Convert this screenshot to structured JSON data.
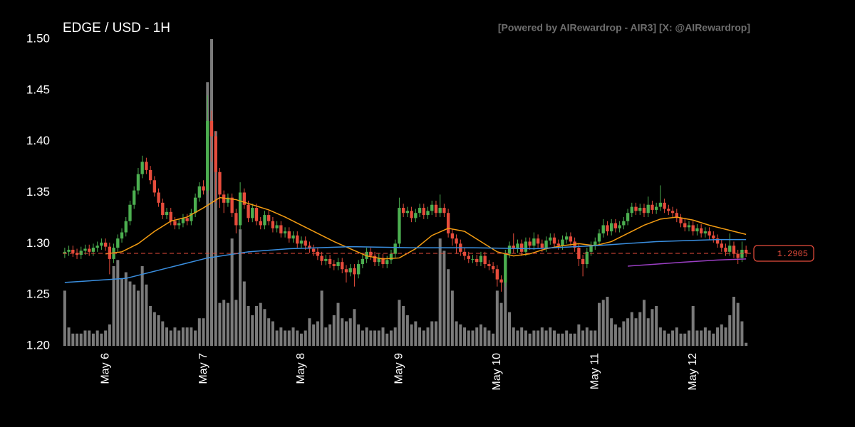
{
  "chart_data": {
    "type": "candlestick",
    "title": "EDGE / USD - 1H",
    "watermark": "[Powered by AIRewardrop - AIR3] [X: @AIRewardrop]",
    "up_color": "#4caf50",
    "down_color": "#e74c3c",
    "volume_color": "#7a7a7a",
    "ylim": [
      1.2,
      1.5
    ],
    "yticks": [
      {
        "value": 1.2,
        "label": "1.20"
      },
      1.25,
      {
        "value": 1.3,
        "label": "1.30"
      },
      1.35,
      {
        "value": 1.4,
        "label": "1.40"
      },
      1.45,
      {
        "value": 1.5,
        "label": "1.50"
      }
    ],
    "xlim": [
      -0.5,
      167.5
    ],
    "xticks": [
      {
        "value": 10,
        "label": "May 6"
      },
      {
        "value": 34,
        "label": "May 7"
      },
      {
        "value": 58,
        "label": "May 8"
      },
      {
        "value": 82,
        "label": "May 9"
      },
      {
        "value": 106,
        "label": "May 10"
      },
      {
        "value": 130,
        "label": "May 11"
      },
      {
        "value": 154,
        "label": "May 12"
      }
    ],
    "open": [
      1.29,
      1.292,
      1.294,
      1.291,
      1.289,
      1.293,
      1.295,
      1.292,
      1.296,
      1.298,
      1.301,
      1.297,
      1.285,
      1.296,
      1.305,
      1.311,
      1.322,
      1.338,
      1.352,
      1.368,
      1.38,
      1.372,
      1.362,
      1.35,
      1.34,
      1.328,
      1.331,
      1.322,
      1.318,
      1.32,
      1.325,
      1.322,
      1.33,
      1.345,
      1.356,
      1.352,
      1.42,
      1.405,
      1.37,
      1.348,
      1.34,
      1.345,
      1.33,
      1.318,
      1.35,
      1.338,
      1.325,
      1.335,
      1.322,
      1.318,
      1.328,
      1.322,
      1.315,
      1.318,
      1.31,
      1.312,
      1.305,
      1.308,
      1.3,
      1.303,
      1.298,
      1.295,
      1.292,
      1.288,
      1.283,
      1.285,
      1.28,
      1.278,
      1.282,
      1.275,
      1.272,
      1.276,
      1.27,
      1.28,
      1.285,
      1.292,
      1.288,
      1.282,
      1.286,
      1.28,
      1.284,
      1.29,
      1.3,
      1.335,
      1.33,
      1.332,
      1.325,
      1.33,
      1.335,
      1.328,
      1.332,
      1.338,
      1.33,
      1.335,
      1.33,
      1.31,
      1.305,
      1.3,
      1.292,
      1.288,
      1.285,
      1.285,
      1.282,
      1.288,
      1.28,
      1.278,
      1.275,
      1.265,
      1.262,
      1.29,
      1.298,
      1.295,
      1.3,
      1.292,
      1.302,
      1.298,
      1.305,
      1.3,
      1.296,
      1.303,
      1.306,
      1.3,
      1.298,
      1.304,
      1.307,
      1.302,
      1.296,
      1.285,
      1.28,
      1.292,
      1.298,
      1.302,
      1.31,
      1.318,
      1.312,
      1.32,
      1.315,
      1.318,
      1.322,
      1.33,
      1.336,
      1.332,
      1.335,
      1.33,
      1.338,
      1.333,
      1.336,
      1.34,
      1.334,
      1.332,
      1.33,
      1.325,
      1.32,
      1.316,
      1.318,
      1.312,
      1.315,
      1.31,
      1.312,
      1.308,
      1.305,
      1.3,
      1.296,
      1.292,
      1.298,
      1.29,
      1.286,
      1.294
    ],
    "high": [
      1.296,
      1.298,
      1.298,
      1.295,
      1.297,
      1.299,
      1.299,
      1.3,
      1.302,
      1.305,
      1.305,
      1.301,
      1.3,
      1.309,
      1.315,
      1.326,
      1.342,
      1.356,
      1.374,
      1.386,
      1.384,
      1.376,
      1.366,
      1.354,
      1.344,
      1.335,
      1.335,
      1.326,
      1.324,
      1.329,
      1.329,
      1.334,
      1.349,
      1.36,
      1.362,
      1.445,
      1.43,
      1.41,
      1.374,
      1.352,
      1.349,
      1.349,
      1.334,
      1.36,
      1.354,
      1.342,
      1.339,
      1.339,
      1.326,
      1.332,
      1.332,
      1.326,
      1.322,
      1.322,
      1.316,
      1.316,
      1.312,
      1.312,
      1.307,
      1.307,
      1.302,
      1.299,
      1.296,
      1.292,
      1.289,
      1.289,
      1.284,
      1.286,
      1.286,
      1.279,
      1.28,
      1.28,
      1.284,
      1.289,
      1.296,
      1.296,
      1.292,
      1.29,
      1.29,
      1.288,
      1.294,
      1.304,
      1.345,
      1.339,
      1.336,
      1.336,
      1.334,
      1.339,
      1.339,
      1.336,
      1.342,
      1.342,
      1.348,
      1.339,
      1.334,
      1.314,
      1.309,
      1.304,
      1.296,
      1.292,
      1.289,
      1.289,
      1.292,
      1.292,
      1.284,
      1.282,
      1.279,
      1.269,
      1.294,
      1.302,
      1.31,
      1.304,
      1.304,
      1.306,
      1.306,
      1.311,
      1.309,
      1.304,
      1.307,
      1.31,
      1.31,
      1.304,
      1.308,
      1.311,
      1.311,
      1.306,
      1.3,
      1.289,
      1.296,
      1.302,
      1.306,
      1.314,
      1.324,
      1.322,
      1.324,
      1.324,
      1.322,
      1.326,
      1.334,
      1.34,
      1.34,
      1.339,
      1.339,
      1.346,
      1.342,
      1.34,
      1.357,
      1.344,
      1.338,
      1.336,
      1.334,
      1.329,
      1.324,
      1.322,
      1.322,
      1.319,
      1.319,
      1.316,
      1.316,
      1.312,
      1.309,
      1.304,
      1.3,
      1.31,
      1.302,
      1.294,
      1.302,
      1.298
    ],
    "low": [
      1.286,
      1.288,
      1.287,
      1.285,
      1.285,
      1.289,
      1.288,
      1.288,
      1.292,
      1.294,
      1.293,
      1.27,
      1.281,
      1.292,
      1.301,
      1.307,
      1.318,
      1.334,
      1.348,
      1.364,
      1.368,
      1.358,
      1.346,
      1.336,
      1.324,
      1.324,
      1.318,
      1.314,
      1.314,
      1.316,
      1.318,
      1.318,
      1.326,
      1.341,
      1.348,
      1.348,
      1.38,
      1.34,
      1.335,
      1.33,
      1.336,
      1.326,
      1.31,
      1.314,
      1.334,
      1.321,
      1.321,
      1.318,
      1.314,
      1.314,
      1.318,
      1.311,
      1.311,
      1.306,
      1.306,
      1.301,
      1.301,
      1.296,
      1.296,
      1.294,
      1.291,
      1.288,
      1.284,
      1.279,
      1.279,
      1.276,
      1.274,
      1.274,
      1.271,
      1.262,
      1.268,
      1.258,
      1.266,
      1.276,
      1.281,
      1.284,
      1.278,
      1.278,
      1.276,
      1.276,
      1.28,
      1.286,
      1.296,
      1.326,
      1.326,
      1.321,
      1.321,
      1.326,
      1.324,
      1.324,
      1.328,
      1.326,
      1.326,
      1.326,
      1.306,
      1.298,
      1.29,
      1.288,
      1.284,
      1.281,
      1.281,
      1.278,
      1.278,
      1.276,
      1.274,
      1.271,
      1.258,
      1.253,
      1.258,
      1.286,
      1.291,
      1.291,
      1.288,
      1.288,
      1.294,
      1.294,
      1.296,
      1.292,
      1.292,
      1.299,
      1.296,
      1.294,
      1.294,
      1.3,
      1.298,
      1.292,
      1.278,
      1.268,
      1.276,
      1.288,
      1.294,
      1.298,
      1.306,
      1.308,
      1.308,
      1.311,
      1.311,
      1.314,
      1.318,
      1.326,
      1.328,
      1.328,
      1.326,
      1.326,
      1.329,
      1.329,
      1.332,
      1.33,
      1.328,
      1.326,
      1.321,
      1.316,
      1.312,
      1.312,
      1.308,
      1.308,
      1.306,
      1.306,
      1.304,
      1.301,
      1.296,
      1.292,
      1.288,
      1.288,
      1.286,
      1.28,
      1.282,
      1.287
    ],
    "close": [
      1.292,
      1.294,
      1.291,
      1.289,
      1.293,
      1.295,
      1.292,
      1.296,
      1.298,
      1.301,
      1.297,
      1.285,
      1.296,
      1.305,
      1.311,
      1.322,
      1.338,
      1.352,
      1.368,
      1.38,
      1.372,
      1.362,
      1.35,
      1.34,
      1.328,
      1.331,
      1.322,
      1.318,
      1.32,
      1.325,
      1.322,
      1.33,
      1.345,
      1.356,
      1.352,
      1.42,
      1.405,
      1.37,
      1.348,
      1.34,
      1.345,
      1.33,
      1.318,
      1.35,
      1.338,
      1.325,
      1.335,
      1.322,
      1.318,
      1.328,
      1.322,
      1.315,
      1.318,
      1.31,
      1.312,
      1.305,
      1.308,
      1.3,
      1.303,
      1.298,
      1.295,
      1.292,
      1.288,
      1.283,
      1.285,
      1.28,
      1.278,
      1.282,
      1.275,
      1.272,
      1.276,
      1.27,
      1.28,
      1.285,
      1.292,
      1.288,
      1.282,
      1.286,
      1.28,
      1.284,
      1.29,
      1.3,
      1.335,
      1.33,
      1.332,
      1.325,
      1.33,
      1.335,
      1.328,
      1.332,
      1.338,
      1.33,
      1.335,
      1.33,
      1.31,
      1.305,
      1.3,
      1.292,
      1.288,
      1.285,
      1.285,
      1.282,
      1.288,
      1.28,
      1.278,
      1.275,
      1.265,
      1.262,
      1.29,
      1.298,
      1.295,
      1.3,
      1.292,
      1.302,
      1.298,
      1.305,
      1.3,
      1.296,
      1.303,
      1.306,
      1.3,
      1.298,
      1.304,
      1.307,
      1.302,
      1.296,
      1.285,
      1.28,
      1.292,
      1.298,
      1.302,
      1.31,
      1.318,
      1.312,
      1.32,
      1.315,
      1.318,
      1.322,
      1.33,
      1.336,
      1.332,
      1.335,
      1.33,
      1.338,
      1.333,
      1.336,
      1.34,
      1.334,
      1.332,
      1.33,
      1.325,
      1.32,
      1.316,
      1.318,
      1.312,
      1.315,
      1.31,
      1.312,
      1.308,
      1.305,
      1.3,
      1.296,
      1.292,
      1.298,
      1.29,
      1.286,
      1.294,
      1.2905
    ],
    "volume": [
      18,
      6,
      4,
      4,
      4,
      5,
      5,
      4,
      5,
      4,
      5,
      7,
      26,
      28,
      22,
      24,
      21,
      20,
      18,
      26,
      20,
      13,
      11,
      10,
      8,
      6,
      5,
      6,
      5,
      6,
      6,
      6,
      5,
      9,
      9,
      86,
      100,
      70,
      14,
      15,
      14,
      35,
      15,
      38,
      21,
      13,
      10,
      13,
      14,
      12,
      9,
      8,
      5,
      6,
      5,
      5,
      6,
      5,
      4,
      5,
      9,
      7,
      8,
      18,
      6,
      7,
      10,
      14,
      9,
      8,
      9,
      12,
      7,
      5,
      6,
      5,
      5,
      5,
      6,
      4,
      5,
      6,
      15,
      13,
      10,
      7,
      8,
      6,
      5,
      6,
      8,
      8,
      35,
      31,
      25,
      18,
      8,
      7,
      6,
      5,
      5,
      6,
      7,
      6,
      5,
      4,
      18,
      14,
      22,
      11,
      6,
      5,
      6,
      5,
      4,
      5,
      5,
      6,
      5,
      6,
      5,
      4,
      4,
      5,
      4,
      4,
      7,
      5,
      6,
      5,
      5,
      14,
      15,
      16,
      9,
      7,
      6,
      8,
      9,
      11,
      9,
      11,
      15,
      9,
      12,
      13,
      6,
      5,
      4,
      5,
      6,
      4,
      4,
      5,
      13,
      5,
      5,
      6,
      5,
      4,
      6,
      7,
      6,
      10,
      16,
      14,
      8,
      1
    ],
    "lines": [
      {
        "color": "#f39c12",
        "x": [
          10,
          14,
          18,
          22,
          26,
          30,
          34,
          38,
          42,
          46,
          50,
          54,
          58,
          62,
          66,
          70,
          74,
          78,
          82,
          86,
          90,
          94,
          98,
          102,
          106,
          110,
          114,
          118,
          122,
          126,
          130,
          134,
          138,
          142,
          146,
          150,
          154,
          158,
          162,
          167
        ],
        "values": [
          1.29,
          1.292,
          1.3,
          1.312,
          1.322,
          1.326,
          1.335,
          1.345,
          1.343,
          1.338,
          1.333,
          1.326,
          1.318,
          1.31,
          1.302,
          1.295,
          1.288,
          1.285,
          1.286,
          1.295,
          1.308,
          1.315,
          1.312,
          1.302,
          1.292,
          1.288,
          1.29,
          1.295,
          1.298,
          1.3,
          1.298,
          1.302,
          1.31,
          1.318,
          1.324,
          1.326,
          1.323,
          1.318,
          1.314,
          1.309
        ]
      },
      {
        "color": "#3a8fe0",
        "x": [
          0,
          15,
          25,
          35,
          45,
          55,
          70,
          85,
          100,
          115,
          130,
          145,
          160,
          167
        ],
        "values": [
          1.262,
          1.266,
          1.276,
          1.286,
          1.292,
          1.295,
          1.297,
          1.296,
          1.296,
          1.295,
          1.298,
          1.302,
          1.304,
          1.304
        ]
      },
      {
        "color": "#9b3fc4",
        "x": [
          138,
          145,
          152,
          160,
          167
        ],
        "values": [
          1.278,
          1.28,
          1.282,
          1.284,
          1.285
        ]
      }
    ],
    "last_price": 1.2905,
    "last_price_color": "#e74c3c"
  }
}
